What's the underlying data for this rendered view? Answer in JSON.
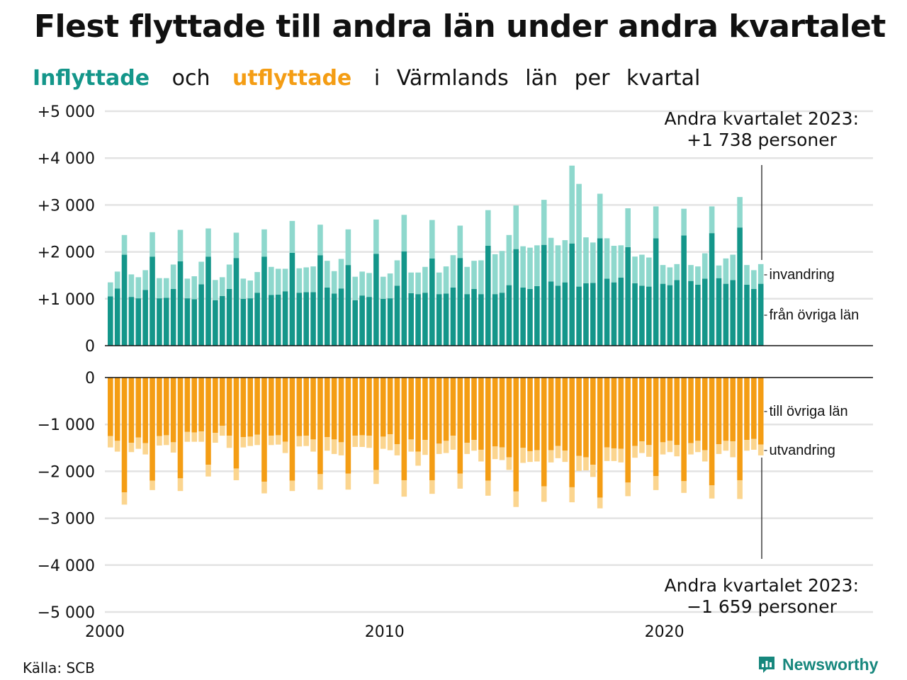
{
  "title": "Flest flyttade till andra län under andra kvartalet",
  "subtitle": {
    "inflow": "Inflyttade",
    "and": "och",
    "outflow": "utflyttade",
    "in": "i",
    "county": "Värmlands",
    "lan": "län",
    "per": "per",
    "quarter": "kvartal"
  },
  "colors": {
    "inflow_dark": "#14968a",
    "inflow_light": "#8ed8cd",
    "outflow_dark": "#f49d14",
    "outflow_light": "#fbd58f",
    "grid": "#e3e3e3"
  },
  "annotations": {
    "top_line1": "Andra kvartalet 2023:",
    "top_line2": "+1 738 personer",
    "bottom_line1": "Andra kvartalet 2023:",
    "bottom_line2": "−1 659 personer"
  },
  "source": "Källa: SCB",
  "brand": {
    "name": "Newsworthy",
    "icon": "newsworthy-logo-icon"
  },
  "chart_data": [
    {
      "type": "bar",
      "stacked": true,
      "x_start": "2000 Q1",
      "x_end": "2023 Q2",
      "x_ticks": [
        "2000",
        "2010",
        "2020"
      ],
      "y_ticks": [
        "+5 000",
        "+4 000",
        "+3 000",
        "+2 000",
        "+1 000",
        "0"
      ],
      "ylim": [
        0,
        5000
      ],
      "grid": true,
      "series": [
        {
          "name": "från övriga län",
          "values": [
            1050,
            1220,
            1940,
            1040,
            1010,
            1190,
            1900,
            1010,
            1020,
            1210,
            1800,
            1010,
            990,
            1310,
            1900,
            970,
            1060,
            1210,
            1870,
            1000,
            1010,
            1130,
            1900,
            1080,
            1090,
            1160,
            1980,
            1130,
            1140,
            1140,
            1930,
            1240,
            1110,
            1220,
            1720,
            970,
            1070,
            1040,
            1960,
            1000,
            1010,
            1280,
            2010,
            1120,
            1100,
            1130,
            1860,
            1100,
            1110,
            1240,
            1870,
            1100,
            1210,
            1100,
            2130,
            1100,
            1130,
            1290,
            2060,
            1240,
            1210,
            1270,
            2150,
            1370,
            1280,
            1350,
            2180,
            1260,
            1330,
            1340,
            2290,
            1430,
            1350,
            1450,
            2100,
            1330,
            1280,
            1260,
            2290,
            1320,
            1290,
            1400,
            2350,
            1380,
            1300,
            1430,
            2400,
            1440,
            1320,
            1400,
            2520,
            1300,
            1210,
            1320
          ]
        },
        {
          "name": "invandring",
          "values": [
            300,
            360,
            420,
            480,
            450,
            420,
            520,
            430,
            420,
            520,
            670,
            420,
            490,
            480,
            600,
            430,
            400,
            520,
            540,
            430,
            380,
            440,
            580,
            600,
            550,
            480,
            680,
            520,
            530,
            550,
            650,
            570,
            480,
            630,
            760,
            500,
            510,
            510,
            730,
            470,
            530,
            540,
            780,
            440,
            460,
            550,
            820,
            460,
            580,
            690,
            690,
            580,
            600,
            720,
            760,
            850,
            890,
            1070,
            930,
            880,
            880,
            870,
            960,
            930,
            860,
            900,
            1660,
            2190,
            980,
            860,
            950,
            860,
            780,
            690,
            830,
            570,
            660,
            620,
            680,
            400,
            380,
            340,
            570,
            340,
            390,
            540,
            570,
            270,
            540,
            540,
            650,
            420,
            400,
            420
          ]
        }
      ]
    },
    {
      "type": "bar",
      "stacked": true,
      "x_start": "2000 Q1",
      "x_end": "2023 Q2",
      "x_ticks": [
        "2000",
        "2010",
        "2020"
      ],
      "y_ticks": [
        "0",
        "−1 000",
        "−2 000",
        "−3 000",
        "−4 000",
        "−5 000"
      ],
      "ylim": [
        -5000,
        0
      ],
      "grid": true,
      "series": [
        {
          "name": "till övriga län",
          "values": [
            -1250,
            -1350,
            -2450,
            -1390,
            -1280,
            -1400,
            -2200,
            -1250,
            -1230,
            -1380,
            -2150,
            -1160,
            -1170,
            -1150,
            -1860,
            -1180,
            -1030,
            -1240,
            -1940,
            -1270,
            -1260,
            -1220,
            -2220,
            -1240,
            -1230,
            -1370,
            -2200,
            -1250,
            -1240,
            -1320,
            -2060,
            -1270,
            -1320,
            -1380,
            -2050,
            -1240,
            -1230,
            -1240,
            -1970,
            -1260,
            -1210,
            -1420,
            -2190,
            -1320,
            -1580,
            -1330,
            -2190,
            -1410,
            -1350,
            -1240,
            -2050,
            -1390,
            -1330,
            -1540,
            -2200,
            -1470,
            -1490,
            -1700,
            -2430,
            -1500,
            -1570,
            -1550,
            -2320,
            -1550,
            -1460,
            -1560,
            -2340,
            -1670,
            -1700,
            -1860,
            -2560,
            -1490,
            -1510,
            -1520,
            -2240,
            -1460,
            -1360,
            -1440,
            -2100,
            -1380,
            -1350,
            -1440,
            -2210,
            -1400,
            -1350,
            -1550,
            -2300,
            -1420,
            -1350,
            -1360,
            -2190,
            -1330,
            -1310,
            -1430
          ]
        },
        {
          "name": "utvandring",
          "values": [
            -240,
            -230,
            -260,
            -200,
            -240,
            -240,
            -200,
            -200,
            -210,
            -220,
            -270,
            -210,
            -200,
            -220,
            -250,
            -210,
            -210,
            -260,
            -250,
            -220,
            -200,
            -220,
            -250,
            -200,
            -200,
            -240,
            -220,
            -220,
            -220,
            -260,
            -330,
            -290,
            -310,
            -280,
            -340,
            -240,
            -250,
            -260,
            -300,
            -260,
            -340,
            -240,
            -350,
            -260,
            -300,
            -320,
            -290,
            -220,
            -260,
            -300,
            -320,
            -240,
            -230,
            -250,
            -320,
            -270,
            -270,
            -270,
            -330,
            -320,
            -230,
            -240,
            -330,
            -260,
            -260,
            -240,
            -320,
            -320,
            -280,
            -260,
            -230,
            -290,
            -270,
            -290,
            -290,
            -250,
            -250,
            -250,
            -300,
            -260,
            -240,
            -240,
            -250,
            -240,
            -240,
            -240,
            -280,
            -210,
            -210,
            -340,
            -400,
            -230,
            -230,
            -230
          ]
        }
      ]
    }
  ]
}
